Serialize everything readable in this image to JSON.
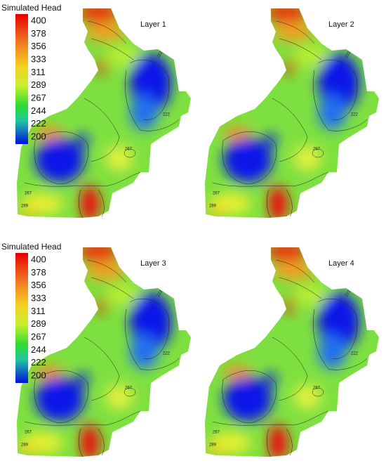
{
  "colorbars": [
    {
      "title": "Simulated Head",
      "labels": [
        400,
        378,
        356,
        333,
        311,
        289,
        267,
        244,
        222,
        200
      ]
    },
    {
      "title": "Simulated Head",
      "labels": [
        400,
        378,
        356,
        333,
        311,
        289,
        267,
        244,
        222,
        200
      ]
    }
  ],
  "panels": [
    {
      "title": "Layer 1",
      "contour_labels": [
        "222",
        "222",
        "267",
        "267",
        "289"
      ]
    },
    {
      "title": "Layer 2",
      "contour_labels": [
        "222",
        "222",
        "267",
        "267",
        "289"
      ]
    },
    {
      "title": "Layer 3",
      "contour_labels": [
        "222",
        "222",
        "267",
        "267",
        "289"
      ]
    },
    {
      "title": "Layer 4",
      "contour_labels": [
        "222",
        "222",
        "267",
        "267",
        "289"
      ]
    }
  ]
}
